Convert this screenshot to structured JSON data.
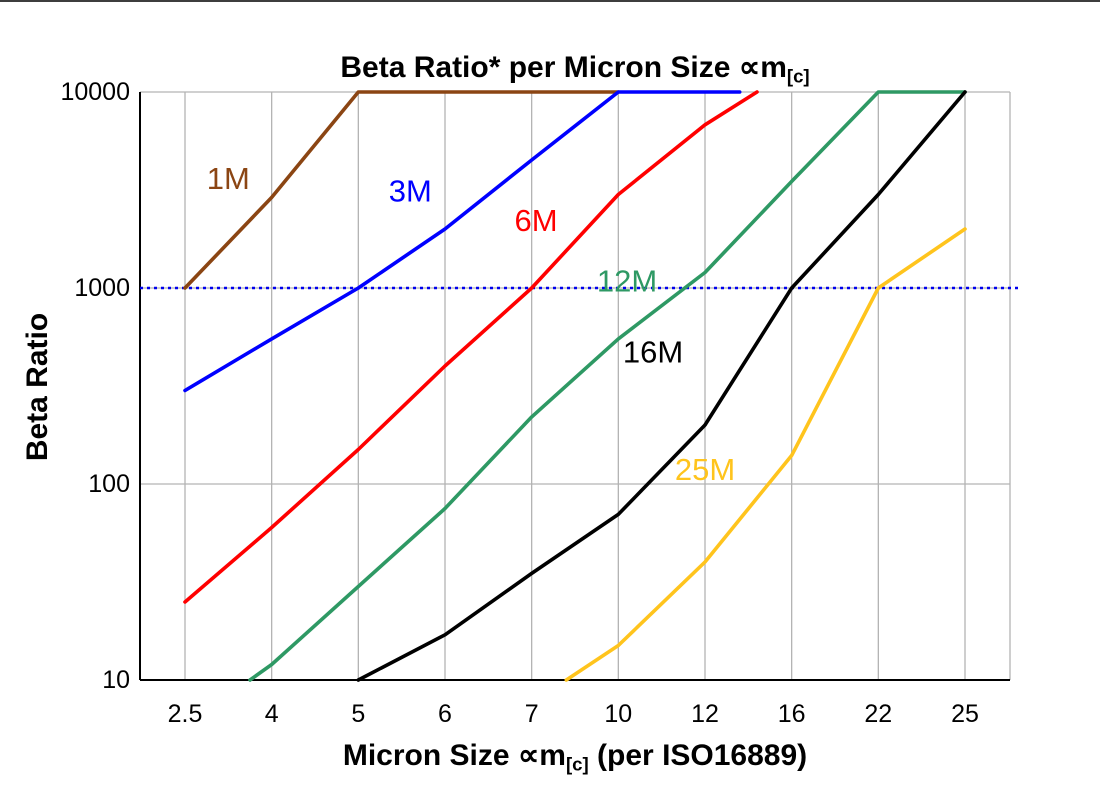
{
  "chart_data": {
    "type": "line",
    "title": {
      "text": "Beta Ratio* per Micron Size ∝m",
      "sub": "[c]"
    },
    "xlabel": {
      "pre": "Micron Size ∝m",
      "sub": "[c]",
      "post": " (per ISO16889)"
    },
    "ylabel": "Beta Ratio",
    "x_categories": [
      "2.5",
      "4",
      "5",
      "6",
      "7",
      "10",
      "12",
      "16",
      "22",
      "25"
    ],
    "y_ticks": [
      "10",
      "100",
      "1000",
      "10000"
    ],
    "y_scale": "log",
    "ylim": [
      10,
      10000
    ],
    "grid": {
      "color": "#b3b3b3",
      "vertical": true,
      "horizontal": true
    },
    "reference_line": {
      "y": 1000,
      "color": "#0000ee",
      "style": "dotted"
    },
    "series": [
      {
        "name": "1M",
        "color": "#8b4513",
        "label_at": [
          0.5,
          3600
        ],
        "points": [
          [
            0,
            1000
          ],
          [
            1,
            2900
          ],
          [
            2,
            10000
          ],
          [
            5,
            10000
          ]
        ]
      },
      {
        "name": "3M",
        "color": "#0000ff",
        "label_at": [
          2.6,
          3100
        ],
        "points": [
          [
            0,
            300
          ],
          [
            1,
            550
          ],
          [
            2,
            1000
          ],
          [
            3,
            2000
          ],
          [
            4,
            4500
          ],
          [
            5,
            10000
          ],
          [
            6.4,
            10000
          ]
        ]
      },
      {
        "name": "6M",
        "color": "#ff0000",
        "label_at": [
          4.05,
          2200
        ],
        "points": [
          [
            0,
            25
          ],
          [
            1,
            60
          ],
          [
            2,
            150
          ],
          [
            3,
            400
          ],
          [
            4,
            1000
          ],
          [
            5,
            3000
          ],
          [
            6,
            6800
          ],
          [
            6.6,
            10000
          ]
        ]
      },
      {
        "name": "12M",
        "color": "#2e9964",
        "label_at": [
          5.1,
          1080
        ],
        "points": [
          [
            0.75,
            10
          ],
          [
            1,
            12
          ],
          [
            2,
            30
          ],
          [
            3,
            75
          ],
          [
            4,
            220
          ],
          [
            5,
            550
          ],
          [
            6,
            1200
          ],
          [
            7,
            3500
          ],
          [
            8,
            10000
          ],
          [
            9,
            10000
          ]
        ]
      },
      {
        "name": "16M",
        "color": "#000000",
        "label_at": [
          5.4,
          470
        ],
        "points": [
          [
            2,
            10
          ],
          [
            3,
            17
          ],
          [
            4,
            35
          ],
          [
            5,
            70
          ],
          [
            6,
            200
          ],
          [
            7,
            1000
          ],
          [
            8,
            3000
          ],
          [
            9,
            10000
          ]
        ]
      },
      {
        "name": "25M",
        "color": "#ffc41d",
        "label_at": [
          6.0,
          118
        ],
        "points": [
          [
            4.4,
            10
          ],
          [
            5,
            15
          ],
          [
            6,
            40
          ],
          [
            7,
            140
          ],
          [
            8,
            1000
          ],
          [
            9,
            2000
          ]
        ]
      }
    ]
  }
}
